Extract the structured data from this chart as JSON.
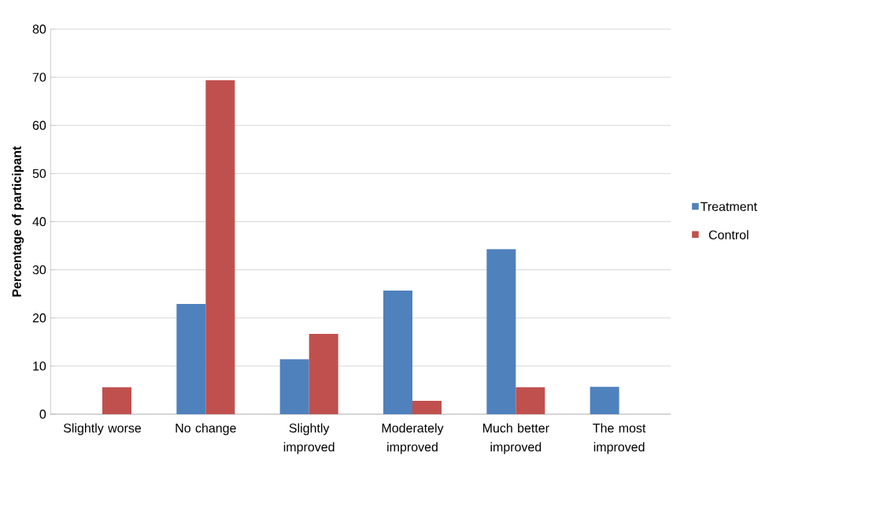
{
  "chart_data": {
    "type": "bar",
    "ylabel": "Percentage of participant",
    "categories": [
      "Slightly worse",
      "No change",
      "Slightly improved",
      "Moderately improved",
      "Much better improved",
      "The most improved"
    ],
    "series": [
      {
        "name": "Treatment",
        "color": "#4f81bd",
        "values": [
          0,
          22.9,
          11.4,
          25.7,
          34.3,
          5.7
        ]
      },
      {
        "name": "Control",
        "color": "#c0504d",
        "values": [
          5.6,
          69.4,
          16.7,
          2.8,
          5.6,
          0
        ]
      }
    ],
    "ylim": [
      0,
      80
    ],
    "yticks": [
      0,
      10,
      20,
      30,
      40,
      50,
      60,
      70,
      80
    ],
    "grid": "y",
    "legend": "right"
  }
}
